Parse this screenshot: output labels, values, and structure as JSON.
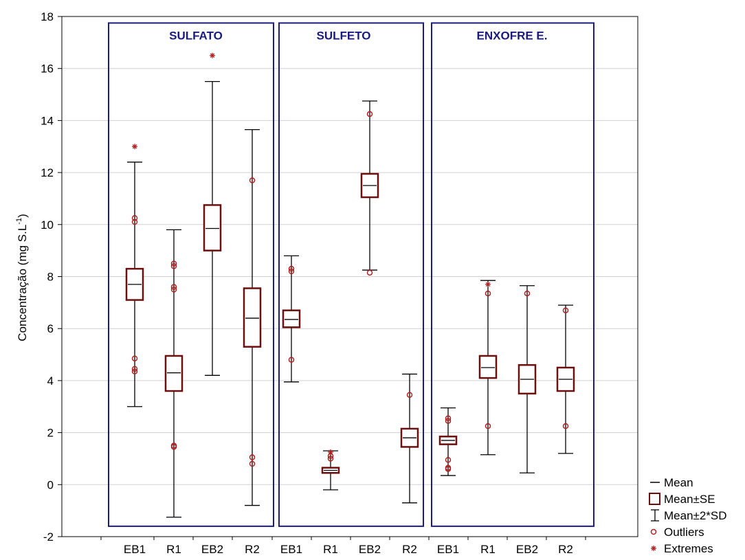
{
  "chart_data": {
    "type": "box",
    "ylabel": {
      "main": "Concentração (mg S.L",
      "sup": "-1",
      "close": ")"
    },
    "ylim": [
      -2,
      18
    ],
    "yticks": [
      -2,
      0,
      2,
      4,
      6,
      8,
      10,
      12,
      14,
      16,
      18
    ],
    "grid": true,
    "legend_position": "bottom-right",
    "groups": [
      "SULFATO",
      "SULFETO",
      "ENXOFRE E."
    ],
    "categories": [
      "EB1",
      "R1",
      "EB2",
      "R2",
      "EB1",
      "R1",
      "EB2",
      "R2",
      "EB1",
      "R1",
      "EB2",
      "R2"
    ],
    "series": [
      {
        "group": "SULFATO",
        "category": "EB1",
        "mean": 7.7,
        "se_low": 7.1,
        "se_high": 8.3,
        "sd2_low": 3.0,
        "sd2_high": 12.4,
        "outliers": [
          10.25,
          10.1,
          4.85,
          4.45,
          4.35
        ],
        "extremes": [
          13.0
        ]
      },
      {
        "group": "SULFATO",
        "category": "R1",
        "mean": 4.3,
        "se_low": 3.6,
        "se_high": 4.95,
        "sd2_low": -1.25,
        "sd2_high": 9.8,
        "outliers": [
          8.5,
          8.4,
          7.6,
          7.5,
          1.5,
          1.45
        ],
        "extremes": []
      },
      {
        "group": "SULFATO",
        "category": "EB2",
        "mean": 9.85,
        "se_low": 9.0,
        "se_high": 10.75,
        "sd2_low": 4.2,
        "sd2_high": 15.5,
        "outliers": [],
        "extremes": [
          16.5
        ]
      },
      {
        "group": "SULFATO",
        "category": "R2",
        "mean": 6.4,
        "se_low": 5.3,
        "se_high": 7.55,
        "sd2_low": -0.8,
        "sd2_high": 13.65,
        "outliers": [
          11.7,
          1.05,
          0.8
        ],
        "extremes": []
      },
      {
        "group": "SULFETO",
        "category": "EB1",
        "mean": 6.35,
        "se_low": 6.05,
        "se_high": 6.7,
        "sd2_low": 3.95,
        "sd2_high": 8.8,
        "outliers": [
          8.3,
          8.2,
          4.8
        ],
        "extremes": []
      },
      {
        "group": "SULFETO",
        "category": "R1",
        "mean": 0.55,
        "se_low": 0.45,
        "se_high": 0.65,
        "sd2_low": -0.2,
        "sd2_high": 1.3,
        "outliers": [
          1.1,
          1.0
        ],
        "extremes": [
          1.25
        ]
      },
      {
        "group": "SULFETO",
        "category": "EB2",
        "mean": 11.5,
        "se_low": 11.05,
        "se_high": 11.95,
        "sd2_low": 8.25,
        "sd2_high": 14.75,
        "outliers": [
          14.25,
          8.15
        ],
        "extremes": []
      },
      {
        "group": "SULFETO",
        "category": "R2",
        "mean": 1.8,
        "se_low": 1.45,
        "se_high": 2.15,
        "sd2_low": -0.7,
        "sd2_high": 4.25,
        "outliers": [
          3.45
        ],
        "extremes": []
      },
      {
        "group": "ENXOFRE E.",
        "category": "EB1",
        "mean": 1.7,
        "se_low": 1.55,
        "se_high": 1.85,
        "sd2_low": 0.35,
        "sd2_high": 2.95,
        "outliers": [
          2.55,
          2.45,
          0.95,
          0.65,
          0.6
        ],
        "extremes": []
      },
      {
        "group": "ENXOFRE E.",
        "category": "R1",
        "mean": 4.5,
        "se_low": 4.1,
        "se_high": 4.95,
        "sd2_low": 1.15,
        "sd2_high": 7.85,
        "outliers": [
          7.35,
          2.25
        ],
        "extremes": [
          7.7
        ]
      },
      {
        "group": "ENXOFRE E.",
        "category": "EB2",
        "mean": 4.05,
        "se_low": 3.5,
        "se_high": 4.6,
        "sd2_low": 0.45,
        "sd2_high": 7.65,
        "outliers": [
          7.35
        ],
        "extremes": []
      },
      {
        "group": "ENXOFRE E.",
        "category": "R2",
        "mean": 4.05,
        "se_low": 3.6,
        "se_high": 4.5,
        "sd2_low": 1.2,
        "sd2_high": 6.9,
        "outliers": [
          6.7,
          2.25
        ],
        "extremes": []
      }
    ],
    "legend": [
      "Mean",
      "Mean±SE",
      "Mean±2*SD",
      "Outliers",
      "Extremes"
    ],
    "colors": {
      "box": "#6b0f0f",
      "whisker": "#000000",
      "marker": "#b02020",
      "group_frame": "#1a1a80",
      "group_title": "#1a1a80",
      "grid": "#d0d0d0"
    }
  }
}
